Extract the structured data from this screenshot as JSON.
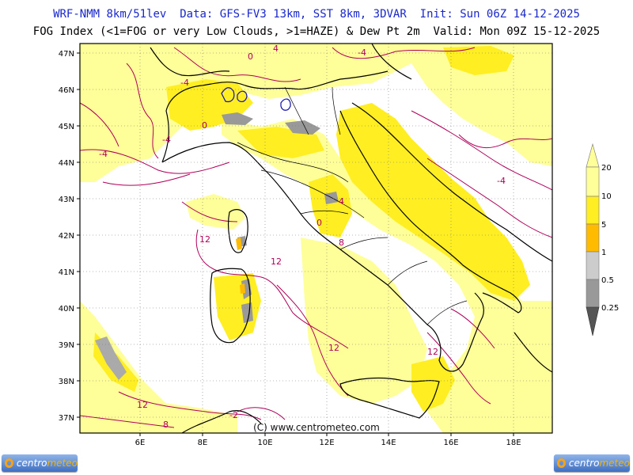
{
  "header": {
    "line1": "WRF-NMM 8km/51lev  Data: GFS-FV3 13km, SST 8km, 3DVAR  Init: Sun 06Z 14-12-2025",
    "line2": "FOG Index (<1=FOG or very Low Clouds, >1=HAZE) & Dew Pt 2m  Valid: Mon 09Z 15-12-2025"
  },
  "map": {
    "lat_labels": [
      "47N",
      "46N",
      "45N",
      "44N",
      "43N",
      "42N",
      "41N",
      "40N",
      "39N",
      "38N",
      "37N"
    ],
    "lon_labels": [
      "6E",
      "8E",
      "10E",
      "12E",
      "14E",
      "16E",
      "18E"
    ],
    "contour_labels": [
      "-4",
      "-4",
      "0",
      "-4",
      "4",
      "-4",
      "-4",
      "0",
      "0",
      "12",
      "12",
      "12",
      "4",
      "8",
      "8",
      "12",
      "12",
      "-2"
    ],
    "copyright": "(C) www.centrometeo.com"
  },
  "legend": {
    "labels": [
      "20",
      "10",
      "5",
      "1",
      "0.5",
      "0.25"
    ],
    "colors": {
      "yellow_light": "#ffff99",
      "yellow": "#ffee22",
      "orange": "#ffbb00",
      "gray_light": "#cccccc",
      "gray": "#999999",
      "gray_dark": "#555555",
      "contour": "#b0005a",
      "border": "#000000",
      "lake": "#1111aa"
    }
  },
  "logos": {
    "left_text_a": "centro",
    "left_text_b": "meteo",
    "right_text_a": "centro",
    "right_text_b": "meteo"
  }
}
